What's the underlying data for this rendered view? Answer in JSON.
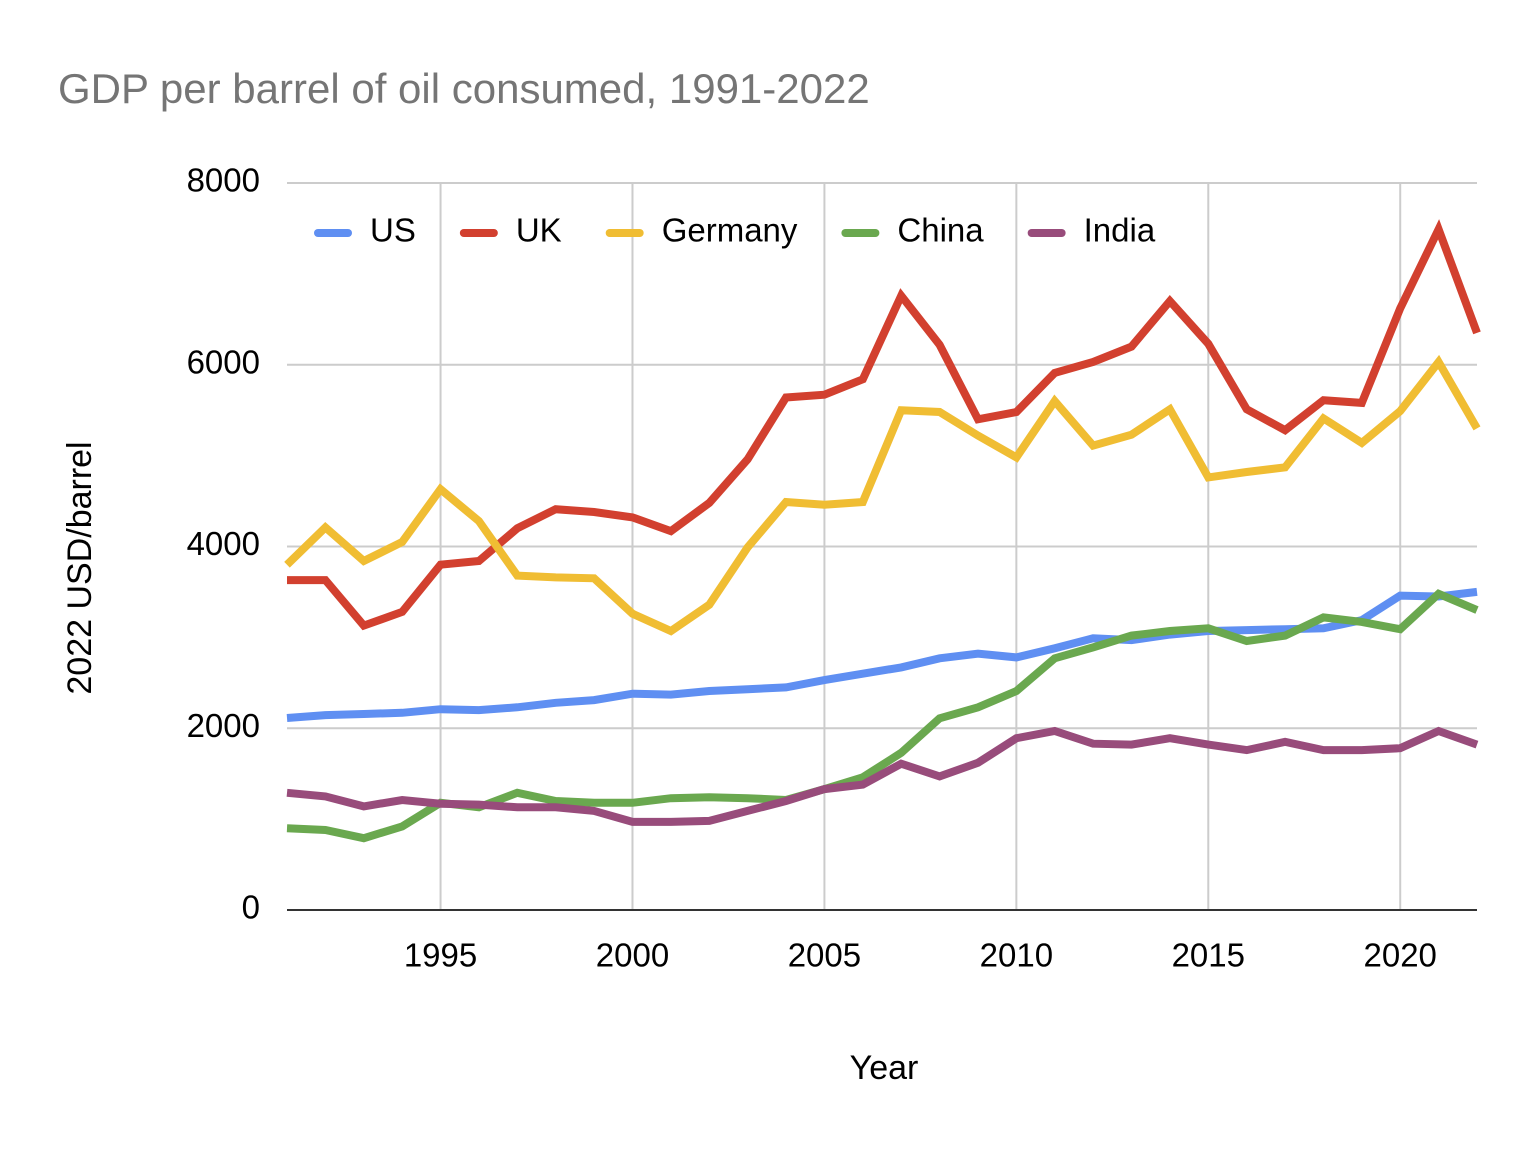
{
  "chart_data": {
    "type": "line",
    "title": "GDP per barrel of oil consumed, 1991-2022",
    "x_label": "Year",
    "y_label": "2022 USD/barrel",
    "x": [
      1991,
      1992,
      1993,
      1994,
      1995,
      1996,
      1997,
      1998,
      1999,
      2000,
      2001,
      2002,
      2003,
      2004,
      2005,
      2006,
      2007,
      2008,
      2009,
      2010,
      2011,
      2012,
      2013,
      2014,
      2015,
      2016,
      2017,
      2018,
      2019,
      2020,
      2021,
      2022
    ],
    "series": [
      {
        "name": "US",
        "color": "#5f8ff2",
        "values": [
          2113,
          2145,
          2157,
          2170,
          2210,
          2200,
          2230,
          2280,
          2310,
          2380,
          2370,
          2410,
          2430,
          2450,
          2530,
          2600,
          2670,
          2770,
          2820,
          2780,
          2880,
          2990,
          2970,
          3030,
          3070,
          3080,
          3090,
          3100,
          3190,
          3460,
          3450,
          3500
        ]
      },
      {
        "name": "UK",
        "color": "#d2402f",
        "values": [
          3630,
          3630,
          3130,
          3280,
          3800,
          3840,
          4200,
          4410,
          4380,
          4320,
          4170,
          4480,
          4960,
          5640,
          5670,
          5840,
          6760,
          6220,
          5400,
          5480,
          5910,
          6030,
          6200,
          6700,
          6230,
          5510,
          5280,
          5610,
          5580,
          6620,
          7490,
          6350
        ]
      },
      {
        "name": "Germany",
        "color": "#f0bd33",
        "values": [
          3800,
          4210,
          3840,
          4050,
          4630,
          4280,
          3680,
          3660,
          3650,
          3260,
          3070,
          3360,
          3990,
          4490,
          4460,
          4490,
          5500,
          5480,
          5220,
          4980,
          5600,
          5110,
          5230,
          5510,
          4760,
          4820,
          4870,
          5410,
          5140,
          5490,
          6030,
          5300
        ]
      },
      {
        "name": "China",
        "color": "#6aa84f",
        "values": [
          900,
          880,
          790,
          920,
          1180,
          1130,
          1290,
          1200,
          1180,
          1180,
          1230,
          1240,
          1230,
          1210,
          1330,
          1460,
          1730,
          2110,
          2230,
          2410,
          2770,
          2890,
          3020,
          3070,
          3100,
          2960,
          3020,
          3220,
          3170,
          3090,
          3480,
          3300
        ]
      },
      {
        "name": "India",
        "color": "#984c7b",
        "values": [
          1290,
          1250,
          1140,
          1210,
          1170,
          1160,
          1130,
          1130,
          1090,
          970,
          970,
          980,
          1090,
          1200,
          1330,
          1380,
          1610,
          1470,
          1620,
          1890,
          1970,
          1830,
          1820,
          1890,
          1820,
          1760,
          1850,
          1760,
          1760,
          1780,
          1970,
          1820
        ]
      }
    ],
    "xlim": [
      1991,
      2022
    ],
    "xticks": [
      1995,
      2000,
      2005,
      2010,
      2015,
      2020
    ],
    "ylim": [
      0,
      8000
    ],
    "yticks": [
      0,
      2000,
      4000,
      6000,
      8000
    ],
    "grid": true,
    "legend": "top-left"
  }
}
